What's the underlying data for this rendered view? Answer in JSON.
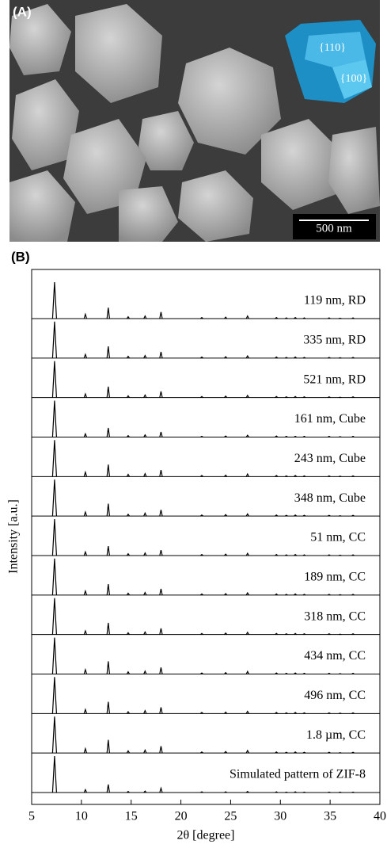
{
  "figure": {
    "panel_a_label": "(A)",
    "facet_labels": [
      "{110}",
      "{100}"
    ],
    "scale_bar": "500 nm"
  },
  "chart_data": {
    "type": "stacked-pattern",
    "panel_label": "(B)",
    "x_label": "2θ [degree]",
    "y_label": "Intensity [a.u.]",
    "color": "#000000",
    "xlim": [
      5,
      40
    ],
    "xticks": [
      5,
      10,
      15,
      20,
      25,
      30,
      35,
      40
    ],
    "x": [
      7.3,
      10.4,
      12.7,
      14.7,
      16.4,
      18.0,
      22.1,
      24.5,
      26.7,
      29.6,
      30.6,
      31.5,
      32.4,
      34.9,
      36.0,
      37.3
    ],
    "series": [
      {
        "name": "119 nm, RD",
        "values": [
          100,
          12,
          30,
          5,
          7,
          18,
          3,
          4,
          7,
          3,
          2,
          3,
          2,
          2,
          1,
          2
        ]
      },
      {
        "name": "335 nm, RD",
        "values": [
          100,
          10,
          32,
          5,
          7,
          17,
          3,
          4,
          6,
          3,
          2,
          3,
          2,
          2,
          1,
          2
        ]
      },
      {
        "name": "521 nm, RD",
        "values": [
          100,
          10,
          30,
          5,
          7,
          17,
          3,
          4,
          6,
          3,
          2,
          3,
          2,
          2,
          1,
          2
        ]
      },
      {
        "name": "161 nm, Cube",
        "values": [
          100,
          9,
          25,
          4,
          6,
          14,
          2,
          3,
          5,
          3,
          2,
          2,
          2,
          2,
          1,
          2
        ]
      },
      {
        "name": "243 nm, Cube",
        "values": [
          100,
          12,
          33,
          6,
          8,
          18,
          3,
          4,
          7,
          3,
          2,
          3,
          2,
          2,
          1,
          2
        ]
      },
      {
        "name": "348 nm, Cube",
        "values": [
          100,
          11,
          34,
          5,
          8,
          17,
          3,
          4,
          6,
          3,
          2,
          3,
          2,
          2,
          1,
          2
        ]
      },
      {
        "name": "51 nm, CC",
        "values": [
          100,
          10,
          26,
          5,
          7,
          15,
          3,
          4,
          6,
          3,
          2,
          3,
          2,
          2,
          1,
          2
        ]
      },
      {
        "name": "189 nm, CC",
        "values": [
          100,
          11,
          30,
          5,
          7,
          17,
          3,
          4,
          6,
          3,
          2,
          3,
          2,
          2,
          1,
          2
        ]
      },
      {
        "name": "318 nm, CC",
        "values": [
          100,
          10,
          32,
          5,
          7,
          17,
          3,
          4,
          6,
          3,
          2,
          3,
          2,
          2,
          1,
          2
        ]
      },
      {
        "name": "434 nm, CC",
        "values": [
          100,
          12,
          35,
          6,
          8,
          18,
          3,
          4,
          7,
          3,
          2,
          3,
          2,
          2,
          1,
          2
        ]
      },
      {
        "name": "496 nm, CC",
        "values": [
          100,
          11,
          32,
          5,
          8,
          17,
          3,
          4,
          6,
          3,
          2,
          3,
          2,
          2,
          1,
          2
        ]
      },
      {
        "name": "1.8 µm, CC",
        "values": [
          100,
          12,
          36,
          6,
          8,
          19,
          3,
          4,
          7,
          3,
          2,
          3,
          2,
          2,
          1,
          2
        ]
      },
      {
        "name": "Simulated pattern of ZIF-8",
        "values": [
          100,
          8,
          22,
          3,
          4,
          12,
          2,
          2,
          3,
          2,
          1,
          2,
          1,
          1,
          1,
          1
        ]
      }
    ]
  }
}
